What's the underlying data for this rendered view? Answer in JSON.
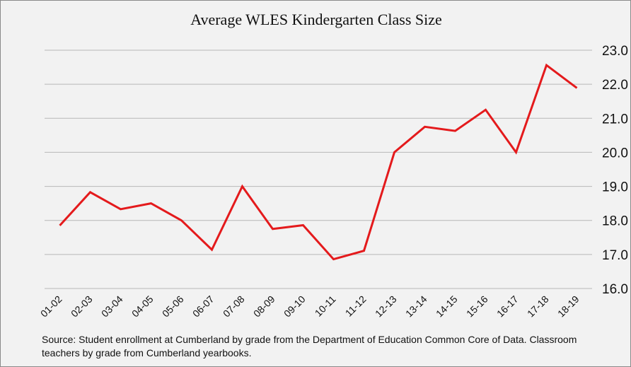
{
  "chart_data": {
    "type": "line",
    "title": "Average WLES Kindergarten Class Size",
    "xlabel": "",
    "ylabel": "",
    "categories": [
      "01-02",
      "02-03",
      "03-04",
      "04-05",
      "05-06",
      "06-07",
      "07-08",
      "08-09",
      "09-10",
      "10-11",
      "11-12",
      "12-13",
      "13-14",
      "14-15",
      "15-16",
      "16-17",
      "17-18",
      "18-19"
    ],
    "series": [
      {
        "name": "Average WLES Kindergarten Class Size",
        "color": "#e41a1c",
        "values": [
          17.85,
          18.83,
          18.33,
          18.5,
          18.0,
          17.14,
          19.0,
          17.75,
          17.86,
          16.86,
          17.11,
          20.0,
          20.75,
          20.63,
          21.25,
          20.0,
          22.56,
          21.89
        ]
      }
    ],
    "ylim": [
      16.0,
      23.0
    ],
    "yticks": [
      "16.0",
      "17.0",
      "18.0",
      "19.0",
      "20.0",
      "21.0",
      "22.0",
      "23.0"
    ],
    "y_axis_side": "right",
    "grid": true,
    "legend": "none"
  },
  "source_note": "Source: Student enrollment at Cumberland by grade from the Department of Education Common Core of Data. Classroom teachers by grade from Cumberland yearbooks."
}
